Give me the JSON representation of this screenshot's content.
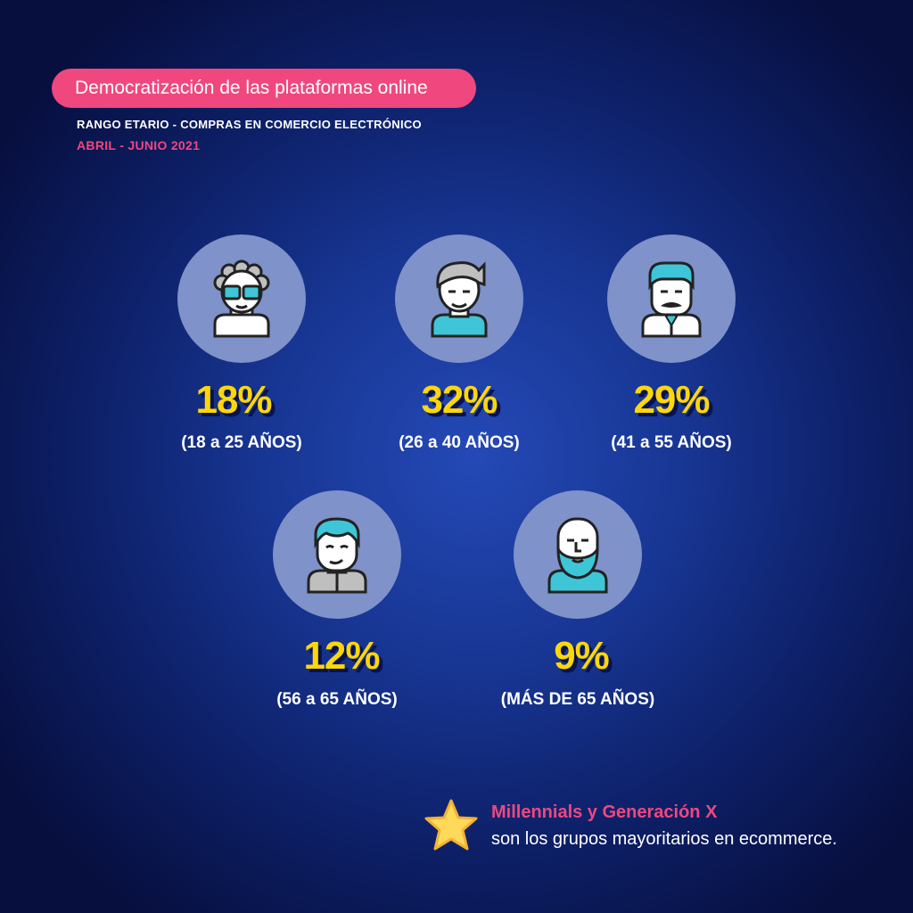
{
  "header": {
    "title": "Democratización de las plataformas online",
    "subtitle": "RANGO ETARIO - COMPRAS EN COMERCIO ELECTRÓNICO",
    "period": "ABRIL - JUNIO 2021"
  },
  "groups": [
    {
      "percent": "18%",
      "range": "(18 a 25 AÑOS)",
      "icon": "young-person-sunglasses-icon"
    },
    {
      "percent": "32%",
      "range": "(26 a 40 AÑOS)",
      "icon": "young-man-icon"
    },
    {
      "percent": "29%",
      "range": "(41 a 55 AÑOS)",
      "icon": "man-mustache-tie-icon"
    },
    {
      "percent": "12%",
      "range": "(56 a 65 AÑOS)",
      "icon": "older-man-icon"
    },
    {
      "percent": "9%",
      "range": "(MÁS DE 65 AÑOS)",
      "icon": "bald-bearded-man-icon"
    }
  ],
  "footnote": {
    "highlight": "Millennials y Generación X",
    "text": "son los grupos mayoritarios en ecommerce.",
    "icon": "star-icon"
  },
  "colors": {
    "accent_pink": "#f0477f",
    "percent_yellow": "#ffd60a",
    "circle": "#7f92c9",
    "teal": "#3ec6d8"
  }
}
